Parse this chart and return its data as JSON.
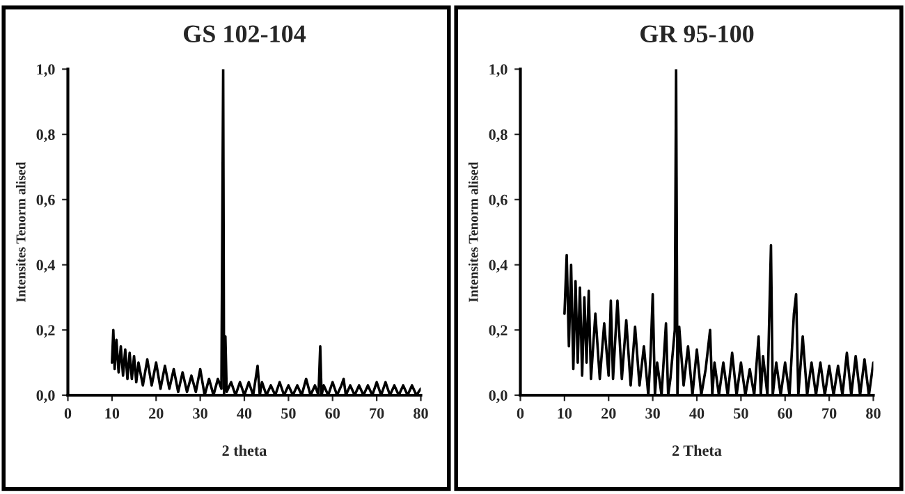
{
  "chart_data": [
    {
      "type": "line",
      "title": "GS 102-104",
      "xlabel": "2 theta",
      "ylabel": "Intensites Tenorm alised",
      "xlim": [
        0,
        80
      ],
      "xticks": [
        0,
        10,
        20,
        30,
        40,
        50,
        60,
        70,
        80
      ],
      "ylim": [
        0,
        1.0
      ],
      "yticks": [
        {
          "value": 0,
          "label": "0,0"
        },
        {
          "value": 0.2,
          "label": "0,2"
        },
        {
          "value": 0.4,
          "label": "0,4"
        },
        {
          "value": 0.6,
          "label": "0,6"
        },
        {
          "value": 0.8,
          "label": "0,8"
        },
        {
          "value": 1.0,
          "label": "1,0"
        }
      ],
      "grid": false,
      "legend": false,
      "series": [
        {
          "color": "#000000",
          "x": [
            10,
            10.3,
            10.6,
            11,
            11.5,
            12,
            12.5,
            13,
            13.5,
            14,
            14.5,
            15,
            15.5,
            16,
            17,
            18,
            19,
            20,
            21,
            22,
            23,
            24,
            25,
            26,
            27,
            28,
            29,
            30,
            31,
            32,
            33,
            34,
            34.8,
            35.2,
            35.4,
            35.7,
            36,
            37,
            38,
            39,
            40,
            41,
            42,
            43,
            43.5,
            44,
            45,
            46,
            47,
            48,
            49,
            50,
            51,
            52,
            53,
            54,
            55,
            56,
            56.8,
            57.2,
            57.5,
            58,
            59,
            60,
            61,
            62,
            62.5,
            63,
            64,
            65,
            66,
            67,
            68,
            69,
            70,
            71,
            72,
            73,
            74,
            75,
            76,
            77,
            78,
            79,
            80
          ],
          "values": [
            0.1,
            0.2,
            0.08,
            0.17,
            0.07,
            0.15,
            0.06,
            0.14,
            0.05,
            0.13,
            0.05,
            0.12,
            0.04,
            0.1,
            0.03,
            0.11,
            0.03,
            0.1,
            0.02,
            0.09,
            0.02,
            0.08,
            0.01,
            0.07,
            0.01,
            0.06,
            0.01,
            0.08,
            0.0,
            0.05,
            0.0,
            0.05,
            0.02,
            1.0,
            0.0,
            0.18,
            0.01,
            0.04,
            0.0,
            0.04,
            0.0,
            0.04,
            0.0,
            0.09,
            0.0,
            0.04,
            0.0,
            0.03,
            0.0,
            0.04,
            0.0,
            0.03,
            0.0,
            0.03,
            0.0,
            0.05,
            0.0,
            0.03,
            0.0,
            0.15,
            0.0,
            0.03,
            0.0,
            0.04,
            0.0,
            0.03,
            0.05,
            0.0,
            0.03,
            0.0,
            0.03,
            0.0,
            0.03,
            0.0,
            0.04,
            0.0,
            0.04,
            0.0,
            0.03,
            0.0,
            0.03,
            0.0,
            0.03,
            0.0,
            0.02
          ]
        }
      ]
    },
    {
      "type": "line",
      "title": "GR 95-100",
      "xlabel": "2 Theta",
      "ylabel": "Intensites Tenorm alised",
      "xlim": [
        0,
        80
      ],
      "xticks": [
        0,
        10,
        20,
        30,
        40,
        50,
        60,
        70,
        80
      ],
      "ylim": [
        0,
        1.0
      ],
      "yticks": [
        {
          "value": 0,
          "label": "0,0"
        },
        {
          "value": 0.2,
          "label": "0,2"
        },
        {
          "value": 0.4,
          "label": "0,4"
        },
        {
          "value": 0.6,
          "label": "0,6"
        },
        {
          "value": 0.8,
          "label": "0,8"
        },
        {
          "value": 1.0,
          "label": "1,0"
        }
      ],
      "grid": false,
      "legend": false,
      "series": [
        {
          "color": "#000000",
          "x": [
            10,
            10.5,
            11,
            11.5,
            12,
            12.5,
            13,
            13.5,
            14,
            14.5,
            15,
            15.5,
            16,
            17,
            18,
            19,
            20,
            20.5,
            21,
            22,
            23,
            24,
            25,
            26,
            27,
            28,
            29,
            29.5,
            30,
            30.5,
            31,
            32,
            33,
            33.5,
            34,
            35,
            35.3,
            35.6,
            36,
            37,
            38,
            39,
            40,
            41,
            42,
            43,
            43.5,
            44,
            45,
            46,
            47,
            48,
            49,
            50,
            51,
            52,
            53,
            54,
            54.5,
            55,
            56,
            56.8,
            57.2,
            58,
            59,
            60,
            61,
            62,
            62.5,
            63,
            64,
            65,
            66,
            67,
            68,
            69,
            70,
            71,
            72,
            73,
            74,
            75,
            76,
            77,
            78,
            79,
            80
          ],
          "values": [
            0.25,
            0.43,
            0.15,
            0.4,
            0.08,
            0.35,
            0.1,
            0.33,
            0.06,
            0.3,
            0.1,
            0.32,
            0.05,
            0.25,
            0.05,
            0.22,
            0.06,
            0.29,
            0.05,
            0.29,
            0.05,
            0.23,
            0.03,
            0.21,
            0.03,
            0.15,
            0.0,
            0.12,
            0.31,
            0.0,
            0.1,
            0.0,
            0.22,
            0.0,
            0.05,
            0.2,
            1.0,
            0.0,
            0.21,
            0.03,
            0.15,
            0.0,
            0.14,
            0.0,
            0.08,
            0.2,
            0.0,
            0.1,
            0.0,
            0.1,
            0.0,
            0.13,
            0.0,
            0.1,
            0.0,
            0.08,
            0.0,
            0.18,
            0.0,
            0.12,
            0.0,
            0.46,
            0.0,
            0.1,
            0.0,
            0.1,
            0.0,
            0.25,
            0.31,
            0.0,
            0.18,
            0.0,
            0.1,
            0.0,
            0.1,
            0.0,
            0.09,
            0.0,
            0.09,
            0.0,
            0.13,
            0.0,
            0.12,
            0.0,
            0.11,
            0.0,
            0.1
          ]
        }
      ]
    }
  ]
}
